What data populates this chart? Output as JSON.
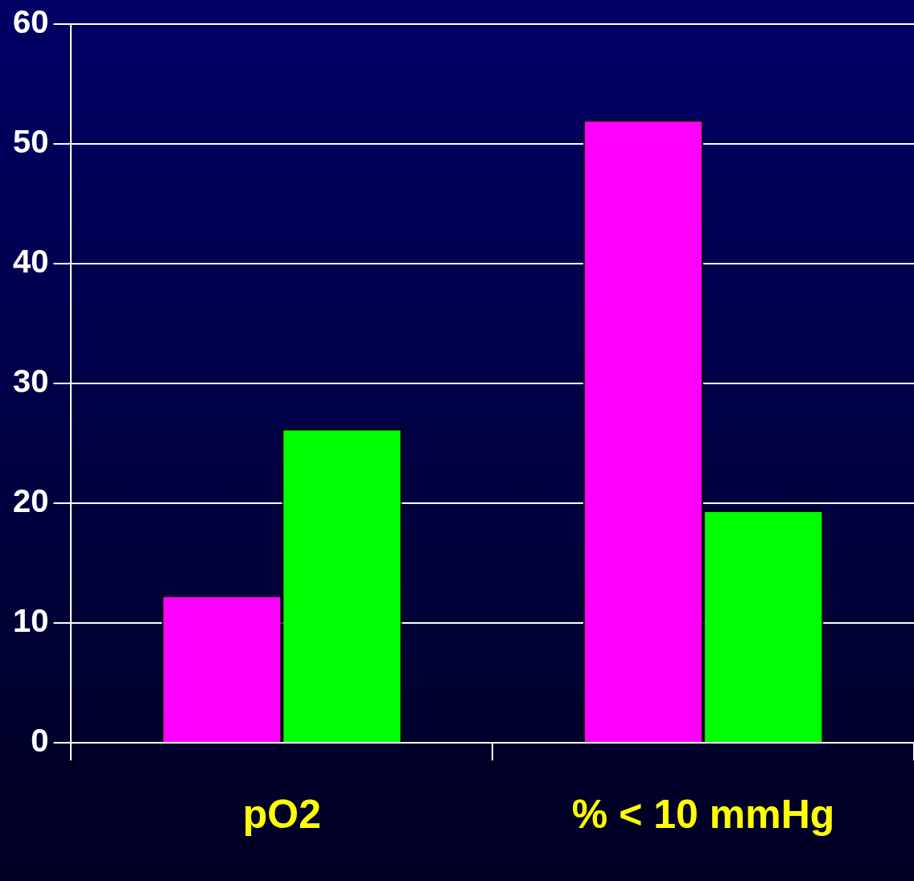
{
  "chart_data": {
    "type": "bar",
    "categories": [
      "pO2",
      "% < 10 mmHg"
    ],
    "series": [
      {
        "color": "#ff00ff",
        "values": [
          12.3,
          52.0
        ]
      },
      {
        "color": "#00ff00",
        "values": [
          26.2,
          19.4
        ]
      }
    ],
    "ylim": [
      0,
      60
    ],
    "yticks": [
      0,
      10,
      20,
      30,
      40,
      50,
      60
    ],
    "grid": "y",
    "legend": false
  }
}
